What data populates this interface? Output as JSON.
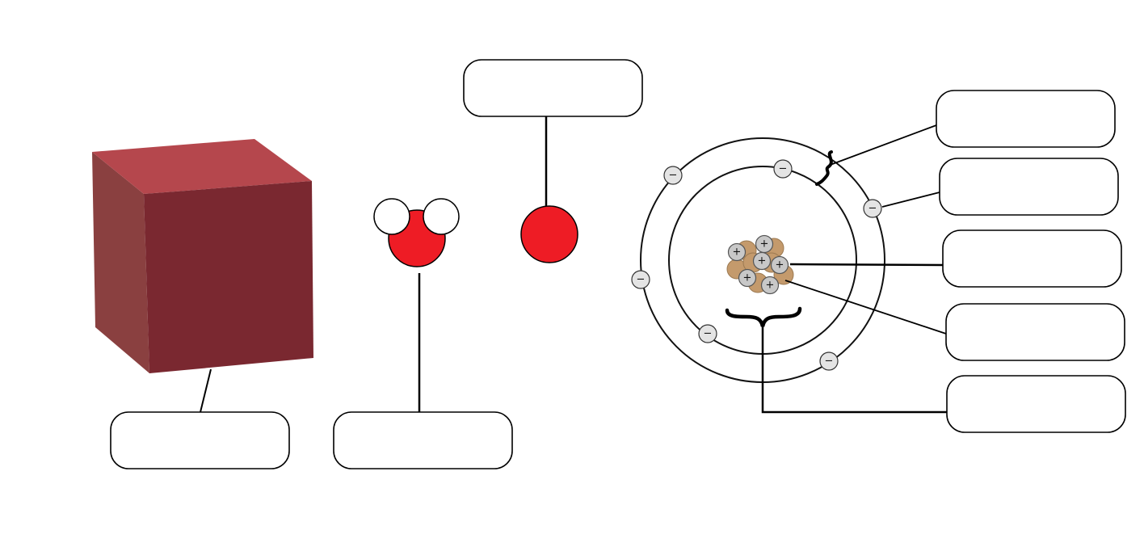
{
  "colors": {
    "cube_front": "#7a2830",
    "cube_top": "#b5474d",
    "cube_left": "#8a4040",
    "atom_red": "#ee1c25",
    "hydrogen_white": "#ffffff",
    "electron_fill": "#e4e4e4",
    "proton_fill": "#c8c8c8",
    "neutron_fill": "#c49a6c"
  },
  "particles": {
    "electron_sign": "−",
    "proton_sign": "+"
  },
  "labels": {
    "substance_box": "",
    "molecule_box": "",
    "atom_box": "",
    "shell_box": "",
    "electron_box": "",
    "proton_box": "",
    "neutron_box": "",
    "nucleus_box": ""
  }
}
